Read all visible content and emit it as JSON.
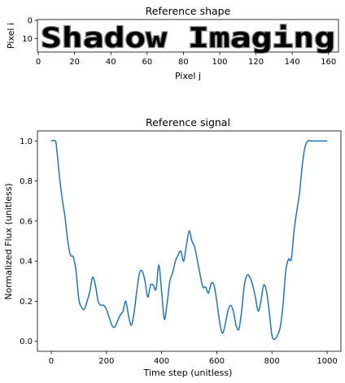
{
  "chart_data": [
    {
      "type": "image",
      "title": "Reference shape",
      "xlabel": "Pixel j",
      "ylabel": "Pixel i",
      "image_text": "Shadow Imaging",
      "image_size": {
        "rows": 18,
        "cols": 166
      },
      "xlim": [
        -0.5,
        165.5
      ],
      "ylim": [
        17.5,
        -0.5
      ],
      "xticks": [
        0,
        20,
        40,
        60,
        80,
        100,
        120,
        140,
        160
      ],
      "yticks": [
        0,
        10
      ],
      "xtick_labels": [
        "0",
        "20",
        "40",
        "60",
        "80",
        "100",
        "120",
        "140",
        "160"
      ],
      "ytick_labels": [
        "0",
        "10"
      ],
      "colormap": "gray (dark text on white)"
    },
    {
      "type": "line",
      "title": "Reference signal",
      "xlabel": "Time step (unitless)",
      "ylabel": "Normalized Flux (unitless)",
      "xlim": [
        -50,
        1050
      ],
      "ylim": [
        -0.05,
        1.05
      ],
      "xticks": [
        0,
        200,
        400,
        600,
        800,
        1000
      ],
      "yticks": [
        0.0,
        0.2,
        0.4,
        0.6,
        0.8,
        1.0
      ],
      "xtick_labels": [
        "0",
        "200",
        "400",
        "600",
        "800",
        "1000"
      ],
      "ytick_labels": [
        "0.0",
        "0.2",
        "0.4",
        "0.6",
        "0.8",
        "1.0"
      ],
      "line_color": "#1f77b4",
      "series": [
        {
          "x": [
            0,
            15,
            20,
            30,
            40,
            50,
            60,
            70,
            80,
            90,
            100,
            110,
            120,
            130,
            140,
            150,
            160,
            170,
            180,
            190,
            200,
            210,
            220,
            230,
            240,
            250,
            260,
            270,
            280,
            290,
            300,
            310,
            320,
            330,
            340,
            350,
            360,
            370,
            380,
            390,
            400,
            410,
            420,
            430,
            440,
            450,
            460,
            470,
            480,
            490,
            500,
            510,
            520,
            530,
            540,
            550,
            560,
            570,
            580,
            590,
            600,
            610,
            620,
            630,
            640,
            650,
            660,
            670,
            680,
            690,
            700,
            710,
            720,
            730,
            740,
            750,
            760,
            770,
            780,
            790,
            800,
            810,
            820,
            830,
            840,
            850,
            860,
            870,
            880,
            890,
            900,
            910,
            920,
            930,
            940,
            950,
            960,
            970,
            980,
            990,
            1000
          ],
          "y": [
            1.0,
            1.0,
            0.96,
            0.82,
            0.71,
            0.62,
            0.5,
            0.43,
            0.42,
            0.35,
            0.21,
            0.17,
            0.16,
            0.2,
            0.25,
            0.32,
            0.28,
            0.2,
            0.18,
            0.18,
            0.16,
            0.12,
            0.08,
            0.07,
            0.1,
            0.13,
            0.15,
            0.2,
            0.13,
            0.08,
            0.14,
            0.25,
            0.34,
            0.35,
            0.3,
            0.22,
            0.28,
            0.28,
            0.26,
            0.38,
            0.25,
            0.11,
            0.19,
            0.3,
            0.34,
            0.4,
            0.43,
            0.45,
            0.4,
            0.48,
            0.55,
            0.5,
            0.47,
            0.4,
            0.33,
            0.27,
            0.27,
            0.24,
            0.29,
            0.28,
            0.2,
            0.1,
            0.04,
            0.08,
            0.15,
            0.18,
            0.15,
            0.08,
            0.06,
            0.15,
            0.28,
            0.33,
            0.32,
            0.28,
            0.22,
            0.15,
            0.2,
            0.28,
            0.25,
            0.15,
            0.03,
            0.01,
            0.03,
            0.07,
            0.18,
            0.35,
            0.41,
            0.41,
            0.55,
            0.65,
            0.74,
            0.88,
            0.97,
            1.0,
            1.0,
            1.0,
            1.0,
            1.0,
            1.0,
            1.0,
            1.0
          ]
        }
      ]
    }
  ]
}
